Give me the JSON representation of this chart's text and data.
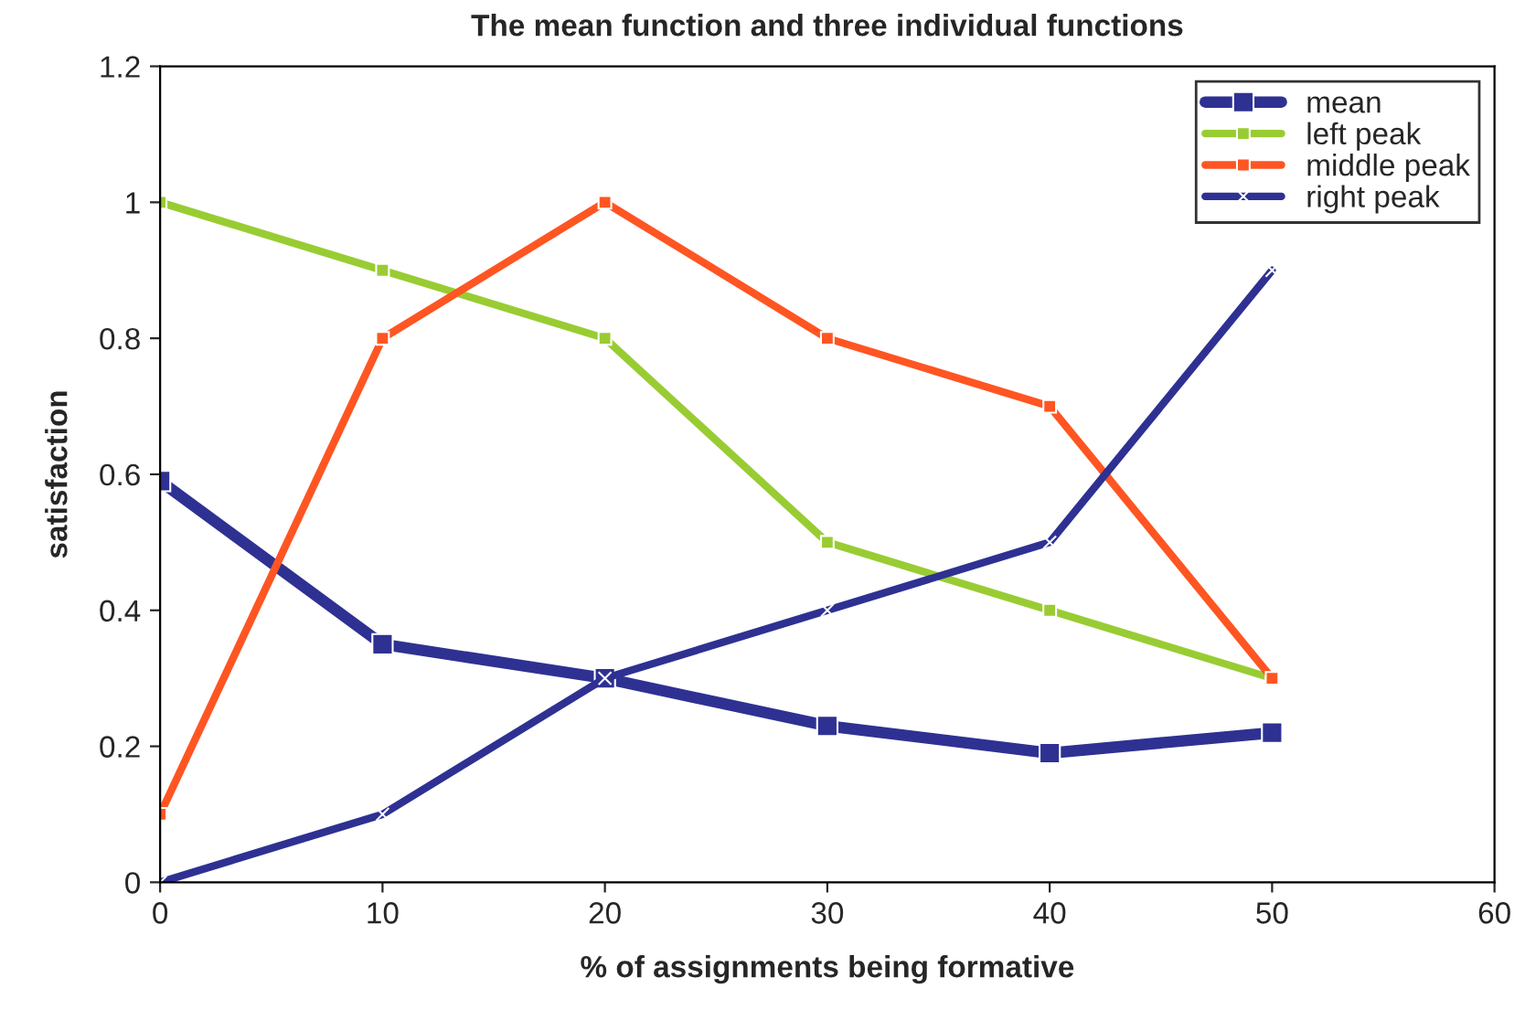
{
  "chart_data": {
    "type": "line",
    "title": "The mean function and three individual functions",
    "xlabel": "% of assignments being formative",
    "ylabel": "satisfaction",
    "x": [
      0,
      10,
      20,
      30,
      40,
      50
    ],
    "series": [
      {
        "name": "mean",
        "color": "#2e3192",
        "marker": "square",
        "values": [
          0.59,
          0.35,
          0.3,
          0.23,
          0.19,
          0.22
        ]
      },
      {
        "name": "left peak",
        "color": "#99cc33",
        "marker": "square",
        "values": [
          1,
          0.9,
          0.8,
          0.5,
          0.4,
          0.3
        ]
      },
      {
        "name": "middle peak",
        "color": "#ff5522",
        "marker": "square",
        "values": [
          0.1,
          0.8,
          1,
          0.8,
          0.7,
          0.3
        ]
      },
      {
        "name": "right peak",
        "color": "#2e3192",
        "marker": "cross",
        "values": [
          0,
          0.1,
          0.3,
          0.4,
          0.5,
          0.9
        ]
      }
    ],
    "xlim": [
      0,
      60
    ],
    "xticks": [
      0,
      10,
      20,
      30,
      40,
      50,
      60
    ],
    "ylim": [
      0,
      1.2
    ],
    "yticks": [
      0,
      0.2,
      0.4,
      0.6,
      0.8,
      1,
      1.2
    ],
    "grid": false,
    "legend": "top right",
    "line_style": "solid"
  }
}
